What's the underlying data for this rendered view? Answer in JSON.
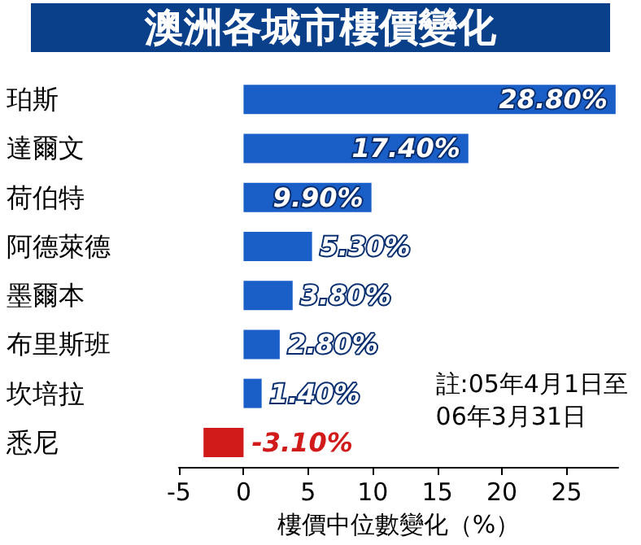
{
  "chart_data": {
    "type": "bar",
    "orientation": "horizontal",
    "title": "澳洲各城市樓價變化",
    "xlabel": "樓價中位數變化（%）",
    "categories": [
      "珀斯",
      "達爾文",
      "荷伯特",
      "阿德萊德",
      "墨爾本",
      "布里斯班",
      "坎培拉",
      "悉尼"
    ],
    "values": [
      28.8,
      17.4,
      9.9,
      5.3,
      3.8,
      2.8,
      1.4,
      -3.1
    ],
    "colors": [
      "#1a5fc8",
      "#1a5fc8",
      "#1a5fc8",
      "#1a5fc8",
      "#1a5fc8",
      "#1a5fc8",
      "#1a5fc8",
      "#d11a1a"
    ],
    "value_labels": [
      "28.80%",
      "17.40%",
      "9.90%",
      "5.30%",
      "3.80%",
      "2.80%",
      "1.40%",
      "-3.10%"
    ],
    "xlim": [
      -5,
      29
    ],
    "xticks": [
      -5,
      0,
      5,
      10,
      15,
      20,
      25
    ],
    "annotations": [
      "註:05年4月1日至\n06年3月31日"
    ],
    "grid": false
  }
}
